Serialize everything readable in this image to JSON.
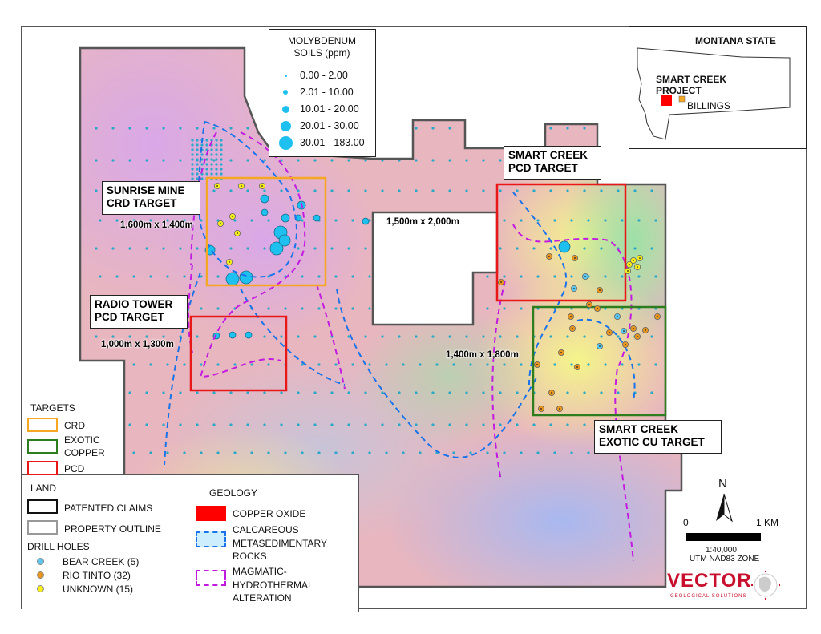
{
  "map": {
    "targets_on_map": [
      {
        "name": "SUNRISE MINE CRD TARGET",
        "line1": "SUNRISE MINE",
        "line2": "CRD TARGET",
        "dimensions": "1,600m x 1,400m",
        "type": "CRD"
      },
      {
        "name": "RADIO TOWER PCD TARGET",
        "line1": "RADIO TOWER",
        "line2": "PCD TARGET",
        "dimensions": "1,000m x 1,300m",
        "type": "PCD"
      },
      {
        "name": "SMART CREEK PCD TARGET",
        "line1": "SMART CREEK",
        "line2": "PCD TARGET",
        "dimensions": "1,500m x 2,000m",
        "type": "PCD"
      },
      {
        "name": "SMART CREEK EXOTIC CU TARGET",
        "line1": "SMART CREEK",
        "line2": "EXOTIC CU TARGET",
        "dimensions": "1,400m x 1,800m",
        "type": "EXOTIC COPPER"
      }
    ]
  },
  "soil_legend": {
    "title1": "MOLYBDENUM",
    "title2": "SOILS (ppm)",
    "classes": [
      "0.00 - 2.00",
      "2.01 - 10.00",
      "10.01 - 20.00",
      "20.01 - 30.00",
      "30.01 - 183.00"
    ],
    "color": "#1ec0ef"
  },
  "inset": {
    "title": "MONTANA STATE",
    "project1": "SMART CREEK",
    "project2": "PROJECT",
    "city": "BILLINGS",
    "project_color": "#ff0000",
    "city_color": "#f5a623"
  },
  "legend": {
    "targets_title": "TARGETS",
    "targets": [
      {
        "label": "CRD",
        "color": "#f5a623"
      },
      {
        "label1": "EXOTIC",
        "label2": "COPPER",
        "color": "#2e7d1e"
      },
      {
        "label": "PCD",
        "color": "#e81818"
      }
    ],
    "land_title": "LAND",
    "land": [
      {
        "label": "PATENTED CLAIMS",
        "color": "#111111"
      },
      {
        "label": "PROPERTY OUTLINE",
        "color": "#999999"
      }
    ],
    "drill_title": "DRILL HOLES",
    "drill": [
      {
        "label": "BEAR CREEK (5)",
        "color": "#5ac8f0"
      },
      {
        "label": "RIO TINTO (32)",
        "color": "#e8961e"
      },
      {
        "label": "UNKNOWN (15)",
        "color": "#f8ef1a"
      }
    ],
    "geology_title": "GEOLOGY",
    "geology": [
      {
        "label": "COPPER OXIDE",
        "color": "#ff0000"
      },
      {
        "label1": "CALCAREOUS",
        "label2": "METASEDIMENTARY",
        "label3": "ROCKS",
        "color": "#1a73e8"
      },
      {
        "label1": "MAGMATIC-",
        "label2": "HYDROTHERMAL",
        "label3": "ALTERATION",
        "color": "#c21be0"
      }
    ]
  },
  "scale": {
    "north": "N",
    "start": "0",
    "end": "1 KM",
    "ratio": "1:40,000",
    "projection": "UTM NAD83 ZONE"
  },
  "logo": {
    "name": "VECTOR",
    "tagline": "GEOLOGICAL SOLUTIONS",
    "color": "#c8102e"
  }
}
